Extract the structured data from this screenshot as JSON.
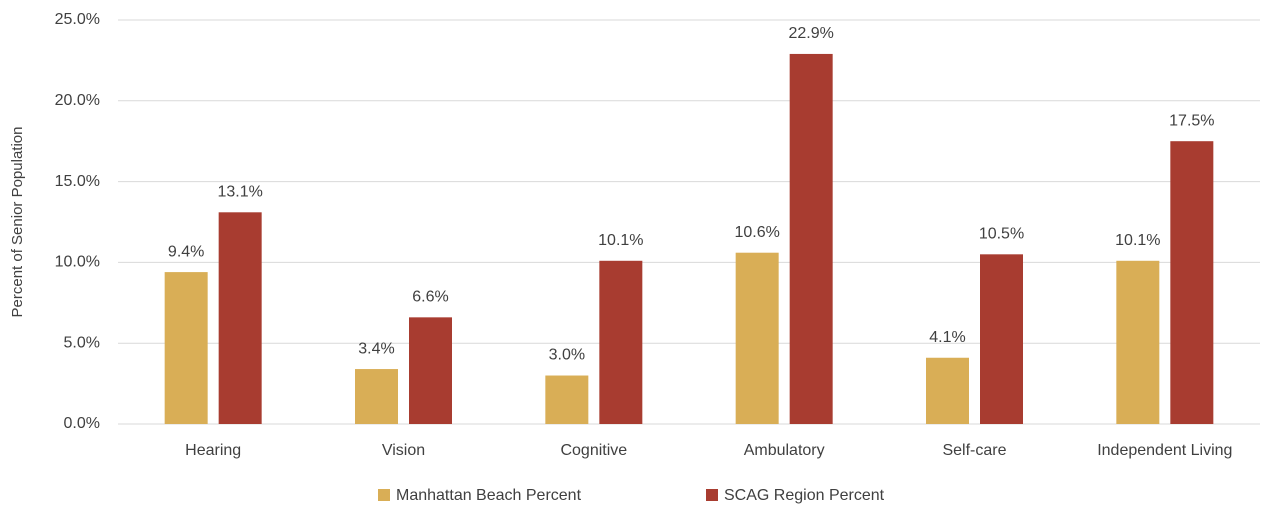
{
  "chart_data": {
    "type": "bar",
    "y_label": "Percent of Senior Population",
    "categories": [
      "Hearing",
      "Vision",
      "Cognitive",
      "Ambulatory",
      "Self-care",
      "Independent Living"
    ],
    "series": [
      {
        "name": "Manhattan Beach Percent",
        "color": "#d9ae56",
        "values": [
          9.4,
          3.4,
          3.0,
          10.6,
          4.1,
          10.1
        ],
        "value_labels": [
          "9.4%",
          "3.4%",
          "3.0%",
          "10.6%",
          "4.1%",
          "10.1%"
        ]
      },
      {
        "name": "SCAG Region Percent",
        "color": "#a83c30",
        "values": [
          13.1,
          6.6,
          10.1,
          22.9,
          10.5,
          17.5
        ],
        "value_labels": [
          "13.1%",
          "6.6%",
          "10.1%",
          "22.9%",
          "10.5%",
          "17.5%"
        ]
      }
    ],
    "ylim": [
      0,
      25
    ],
    "yticks": [
      {
        "value": 0,
        "label": "0.0%"
      },
      {
        "value": 5,
        "label": "5.0%"
      },
      {
        "value": 10,
        "label": "10.0%"
      },
      {
        "value": 15,
        "label": "15.0%"
      },
      {
        "value": 20,
        "label": "20.0%"
      },
      {
        "value": 25,
        "label": "25.0%"
      }
    ],
    "grid": true,
    "legend": "bottom"
  }
}
